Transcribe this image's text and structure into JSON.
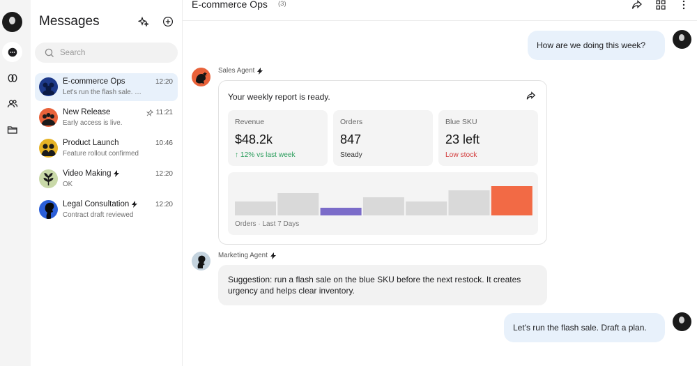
{
  "search": {
    "placeholder": "Search"
  },
  "sidebar": {
    "title": "Messages",
    "conversations": [
      {
        "name": "E-commerce Ops",
        "preview": "Let's run the flash sale. Draft a plan.",
        "time": "12:20",
        "bolt": false,
        "pinned": false,
        "active": true,
        "avatar_color": "#1e3a8a"
      },
      {
        "name": "New Release",
        "preview": "Early access is live.",
        "time": "11:21",
        "bolt": false,
        "pinned": true,
        "active": false,
        "avatar_color": "#e8623a"
      },
      {
        "name": "Product Launch",
        "preview": "Feature rollout confirmed",
        "time": "10:46",
        "bolt": false,
        "pinned": false,
        "active": false,
        "avatar_color": "#e6b325"
      },
      {
        "name": "Video Making",
        "preview": "OK",
        "time": "12:20",
        "bolt": true,
        "pinned": false,
        "active": false,
        "avatar_color": "#c9d9a8"
      },
      {
        "name": "Legal Consultation",
        "preview": "Contract draft reviewed",
        "time": "12:20",
        "bolt": true,
        "pinned": false,
        "active": false,
        "avatar_color": "#2b5fd9"
      }
    ]
  },
  "chat": {
    "title": "E-commerce Ops",
    "member_count": "(3)",
    "messages": {
      "user_1": "How are we doing this week?",
      "sales_agent_name": "Sales Agent",
      "report_title": "Your weekly report is ready.",
      "metrics": [
        {
          "label": "Revenue",
          "value": "$48.2k",
          "sub": "↑ 12% vs last week",
          "sub_tone": "up"
        },
        {
          "label": "Orders",
          "value": "847",
          "sub": "Steady",
          "sub_tone": "neutral"
        },
        {
          "label": "Blue SKU",
          "value": "23 left",
          "sub": "Low stock",
          "sub_tone": "low"
        }
      ],
      "chart_caption": "Orders · Last 7 Days",
      "marketing_agent_name": "Marketing Agent",
      "suggestion": "Suggestion: run a flash sale on the blue SKU before the next restock. It creates urgency and helps clear inventory.",
      "user_2": "Let's run the flash sale. Draft a plan."
    }
  },
  "chart_data": {
    "type": "bar",
    "categories": [
      "",
      "",
      "",
      "",
      "",
      "",
      ""
    ],
    "values": [
      20,
      32,
      11,
      26,
      20,
      36,
      42
    ],
    "ylim": [
      0,
      42
    ],
    "colors": [
      "#d9d9d9",
      "#d9d9d9",
      "#7b6cc9",
      "#d9d9d9",
      "#d9d9d9",
      "#d9d9d9",
      "#f26a45"
    ],
    "xlabel": "",
    "ylabel": "",
    "title": "",
    "grid": false
  },
  "colors": {
    "accent_bubble": "#e8f1fb",
    "positive": "#2a9d5c",
    "negative": "#d33b3b",
    "highlight_bar": "#f26a45"
  }
}
